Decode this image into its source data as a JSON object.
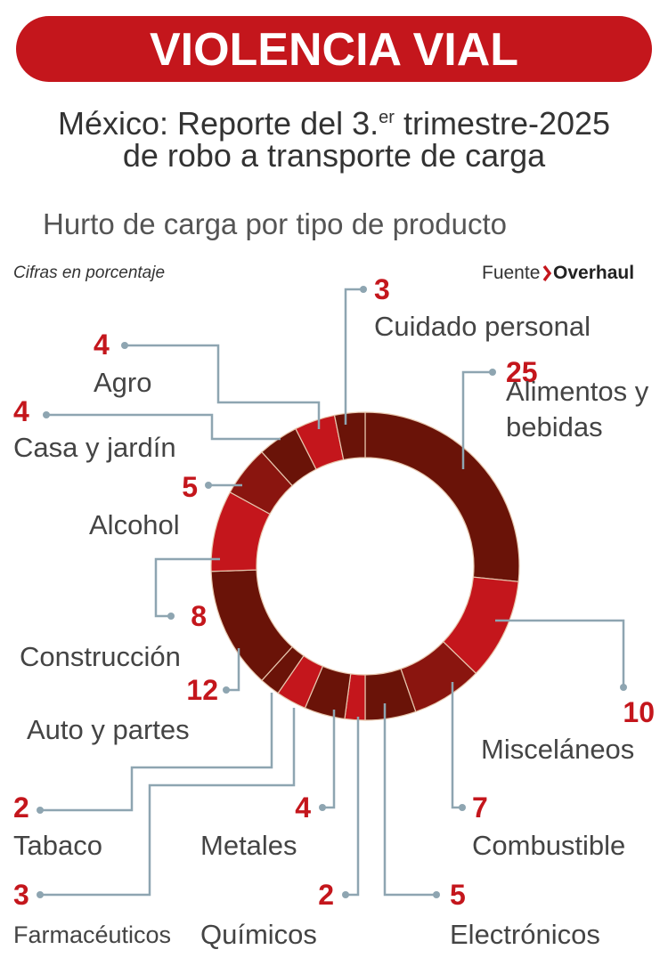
{
  "header": {
    "title": "VIOLENCIA VIAL",
    "subtitle_pre": "México: Reporte del 3.",
    "subtitle_sup": "er",
    "subtitle_post": "trimestre-2025",
    "subtitle_line2": "de robo a transporte de carga"
  },
  "chart_data": {
    "type": "donut",
    "title": "Hurto de carga por tipo de producto",
    "note": "Cifras en porcentaje",
    "source_label": "Fuente",
    "source": "Overhaul",
    "categories": [
      "Alimentos y bebidas",
      "Misceláneos",
      "Combustible",
      "Electrónicos",
      "Químicos",
      "Metales",
      "Farmacéuticos",
      "Tabaco",
      "Auto y partes",
      "Construcción",
      "Alcohol",
      "Casa y jardín",
      "Agro",
      "Cuidado personal"
    ],
    "values": [
      25,
      10,
      7,
      5,
      2,
      4,
      3,
      2,
      12,
      8,
      5,
      4,
      4,
      3
    ],
    "colors": [
      "#6a1308",
      "#c4161c",
      "#8a150f",
      "#6a1308",
      "#c4161c",
      "#6a1308",
      "#c4161c",
      "#6a1308",
      "#6a1308",
      "#c4161c",
      "#8a150f",
      "#6a1308",
      "#c4161c",
      "#6a1308"
    ],
    "value_color": "#c4161c"
  }
}
